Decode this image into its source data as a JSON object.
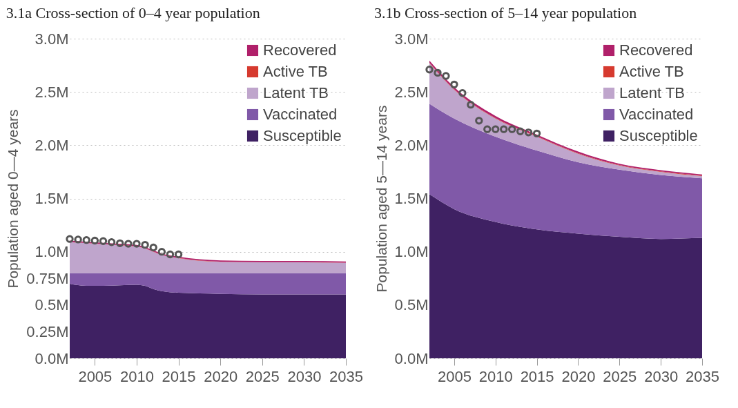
{
  "chart_data": [
    {
      "type": "area",
      "title": "3.1a  Cross-section of 0–4 year population",
      "ylabel": "Population aged 0—4 years",
      "stacked": true,
      "xlim": [
        2002,
        2035
      ],
      "xticks": [
        2005,
        2010,
        2015,
        2020,
        2025,
        2030,
        2035
      ],
      "ylim": [
        0,
        3
      ],
      "yticks": [
        {
          "value": 0,
          "label": "0.0M"
        },
        {
          "value": 0.25,
          "label": "0.25M"
        },
        {
          "value": 0.5,
          "label": "0.5M"
        },
        {
          "value": 0.75,
          "label": "0.75M"
        },
        {
          "value": 1,
          "label": "1.0M"
        },
        {
          "value": 1.5,
          "label": "1.5M"
        },
        {
          "value": 2,
          "label": "2.0M"
        },
        {
          "value": 2.5,
          "label": "2.5M"
        },
        {
          "value": 3,
          "label": "3.0M"
        }
      ],
      "grid": "y",
      "legend": "top right",
      "x": [
        2002,
        2004,
        2006,
        2008,
        2010,
        2011,
        2012,
        2013,
        2015,
        2020,
        2025,
        2030,
        2035
      ],
      "series": [
        {
          "name": "Susceptible",
          "color": "#3f2163",
          "values": [
            0.7,
            0.68,
            0.68,
            0.685,
            0.69,
            0.68,
            0.65,
            0.63,
            0.615,
            0.605,
            0.6,
            0.6,
            0.6
          ]
        },
        {
          "name": "Vaccinated",
          "color": "#8059a8",
          "values": [
            0.1,
            0.12,
            0.12,
            0.115,
            0.11,
            0.12,
            0.15,
            0.17,
            0.185,
            0.195,
            0.2,
            0.2,
            0.2
          ]
        },
        {
          "name": "Latent TB",
          "color": "#bfa5cc",
          "values": [
            0.29,
            0.28,
            0.27,
            0.26,
            0.25,
            0.23,
            0.2,
            0.17,
            0.14,
            0.105,
            0.1,
            0.1,
            0.095
          ]
        },
        {
          "name": "Active TB",
          "color": "#d63a2f",
          "values": [
            0.002,
            0.002,
            0.002,
            0.002,
            0.002,
            0.002,
            0.002,
            0.002,
            0.002,
            0.002,
            0.002,
            0.002,
            0.002
          ]
        },
        {
          "name": "Recovered",
          "color": "#b0206a",
          "values": [
            0.012,
            0.012,
            0.012,
            0.012,
            0.012,
            0.012,
            0.012,
            0.012,
            0.012,
            0.012,
            0.012,
            0.012,
            0.012
          ]
        },
        {
          "type": "scatter",
          "marker": "circle",
          "color": "#555555",
          "x": [
            2002,
            2003,
            2004,
            2005,
            2006,
            2007,
            2008,
            2009,
            2010,
            2011,
            2012,
            2013,
            2014,
            2015
          ],
          "values": [
            1.12,
            1.115,
            1.11,
            1.105,
            1.1,
            1.09,
            1.08,
            1.075,
            1.075,
            1.065,
            1.04,
            1.0,
            0.975,
            0.975
          ]
        }
      ]
    },
    {
      "type": "area",
      "title": "3.1b  Cross-section of 5–14 year population",
      "ylabel": "Population aged 5—14 years",
      "stacked": true,
      "xlim": [
        2002,
        2035
      ],
      "xticks": [
        2005,
        2010,
        2015,
        2020,
        2025,
        2030,
        2035
      ],
      "ylim": [
        0,
        3
      ],
      "yticks": [
        {
          "value": 0,
          "label": "0.0M"
        },
        {
          "value": 0.5,
          "label": "0.5M"
        },
        {
          "value": 1,
          "label": "1.0M"
        },
        {
          "value": 1.5,
          "label": "1.5M"
        },
        {
          "value": 2,
          "label": "2.0M"
        },
        {
          "value": 2.5,
          "label": "2.5M"
        },
        {
          "value": 3,
          "label": "3.0M"
        }
      ],
      "grid": "y",
      "legend": "top right",
      "x": [
        2002,
        2005,
        2010,
        2015,
        2020,
        2025,
        2030,
        2035
      ],
      "series": [
        {
          "name": "Susceptible",
          "color": "#3f2163",
          "values": [
            1.54,
            1.4,
            1.28,
            1.21,
            1.17,
            1.14,
            1.12,
            1.13
          ]
        },
        {
          "name": "Vaccinated",
          "color": "#8059a8",
          "values": [
            0.85,
            0.85,
            0.8,
            0.74,
            0.67,
            0.63,
            0.6,
            0.56
          ]
        },
        {
          "name": "Latent TB",
          "color": "#bfa5cc",
          "values": [
            0.38,
            0.27,
            0.17,
            0.13,
            0.08,
            0.04,
            0.03,
            0.02
          ]
        },
        {
          "name": "Active TB",
          "color": "#d63a2f",
          "values": [
            0.005,
            0.005,
            0.005,
            0.005,
            0.005,
            0.005,
            0.005,
            0.005
          ]
        },
        {
          "name": "Recovered",
          "color": "#b0206a",
          "values": [
            0.02,
            0.02,
            0.02,
            0.015,
            0.015,
            0.01,
            0.01,
            0.01
          ]
        },
        {
          "type": "scatter",
          "marker": "circle",
          "color": "#555555",
          "x": [
            2002,
            2003,
            2004,
            2005,
            2006,
            2007,
            2008,
            2009,
            2010,
            2011,
            2012,
            2013,
            2014,
            2015
          ],
          "values": [
            2.71,
            2.68,
            2.65,
            2.57,
            2.49,
            2.38,
            2.23,
            2.15,
            2.15,
            2.15,
            2.15,
            2.13,
            2.12,
            2.11
          ]
        }
      ]
    }
  ]
}
